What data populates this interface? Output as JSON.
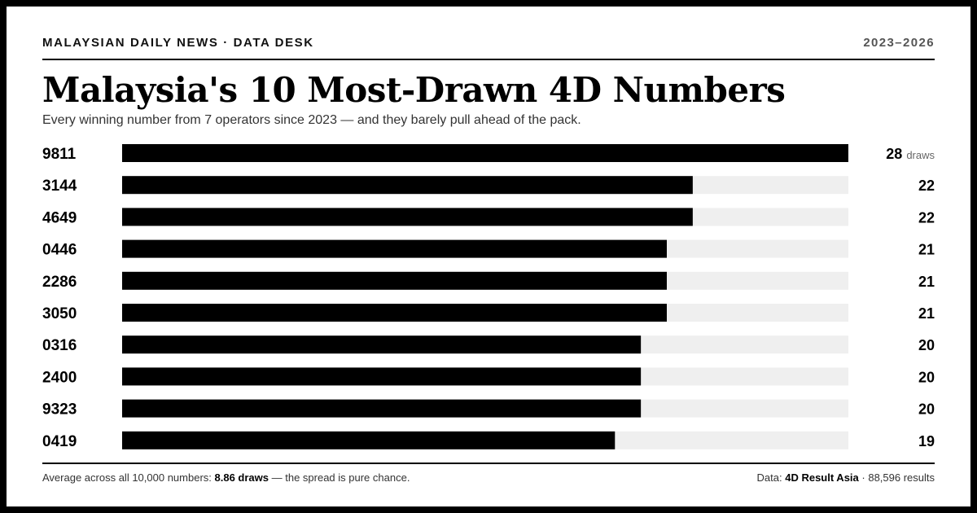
{
  "header": {
    "kicker": "MALAYSIAN DAILY NEWS · DATA DESK",
    "years": "2023–2026"
  },
  "footer": {
    "left_prefix": "Average across all 10,000 numbers: ",
    "left_value": "8.86 draws",
    "left_suffix": " — the spread is pure chance.",
    "right_prefix": "Data: ",
    "right_source": "4D Result Asia",
    "right_suffix": " · 88,596 results"
  },
  "colors": {
    "bar": "#000000",
    "track": "#efefef",
    "label": "#000000",
    "unit": "#666666"
  },
  "chart_data": {
    "type": "bar",
    "orientation": "horizontal",
    "title": "Malaysia's 10 Most-Drawn 4D Numbers",
    "subtitle": "Every winning number from 7 operators since 2023 — and they barely pull ahead of the pack.",
    "categories": [
      "9811",
      "3144",
      "4649",
      "0446",
      "2286",
      "3050",
      "0316",
      "2400",
      "9323",
      "0419"
    ],
    "values": [
      28,
      22,
      22,
      21,
      21,
      21,
      20,
      20,
      20,
      19
    ],
    "value_unit": "draws",
    "xlim": [
      0,
      28
    ],
    "grid": false,
    "legend": "none"
  }
}
